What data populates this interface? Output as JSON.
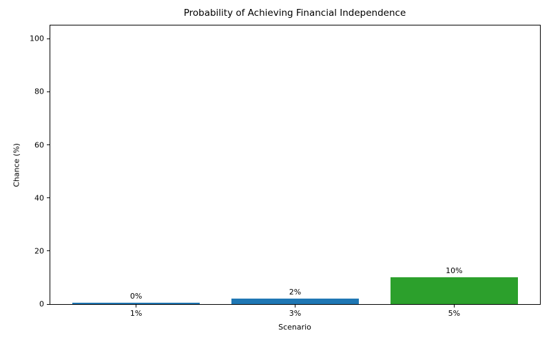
{
  "chart_data": {
    "type": "bar",
    "title": "Probability of Achieving Financial Independence",
    "xlabel": "Scenario",
    "ylabel": "Chance (%)",
    "categories": [
      "1%",
      "3%",
      "5%"
    ],
    "values": [
      0.5,
      2,
      10
    ],
    "bar_labels": [
      "0%",
      "2%",
      "10%"
    ],
    "bar_colors": [
      "#1f77b4",
      "#1f77b4",
      "#2ca02c"
    ],
    "ylim": [
      0,
      105
    ],
    "yticks": [
      0,
      20,
      40,
      60,
      80,
      100
    ],
    "bar_width_fraction": 0.8,
    "grid": false,
    "legend": null,
    "background": "#ffffff",
    "text_color": "#000000"
  }
}
